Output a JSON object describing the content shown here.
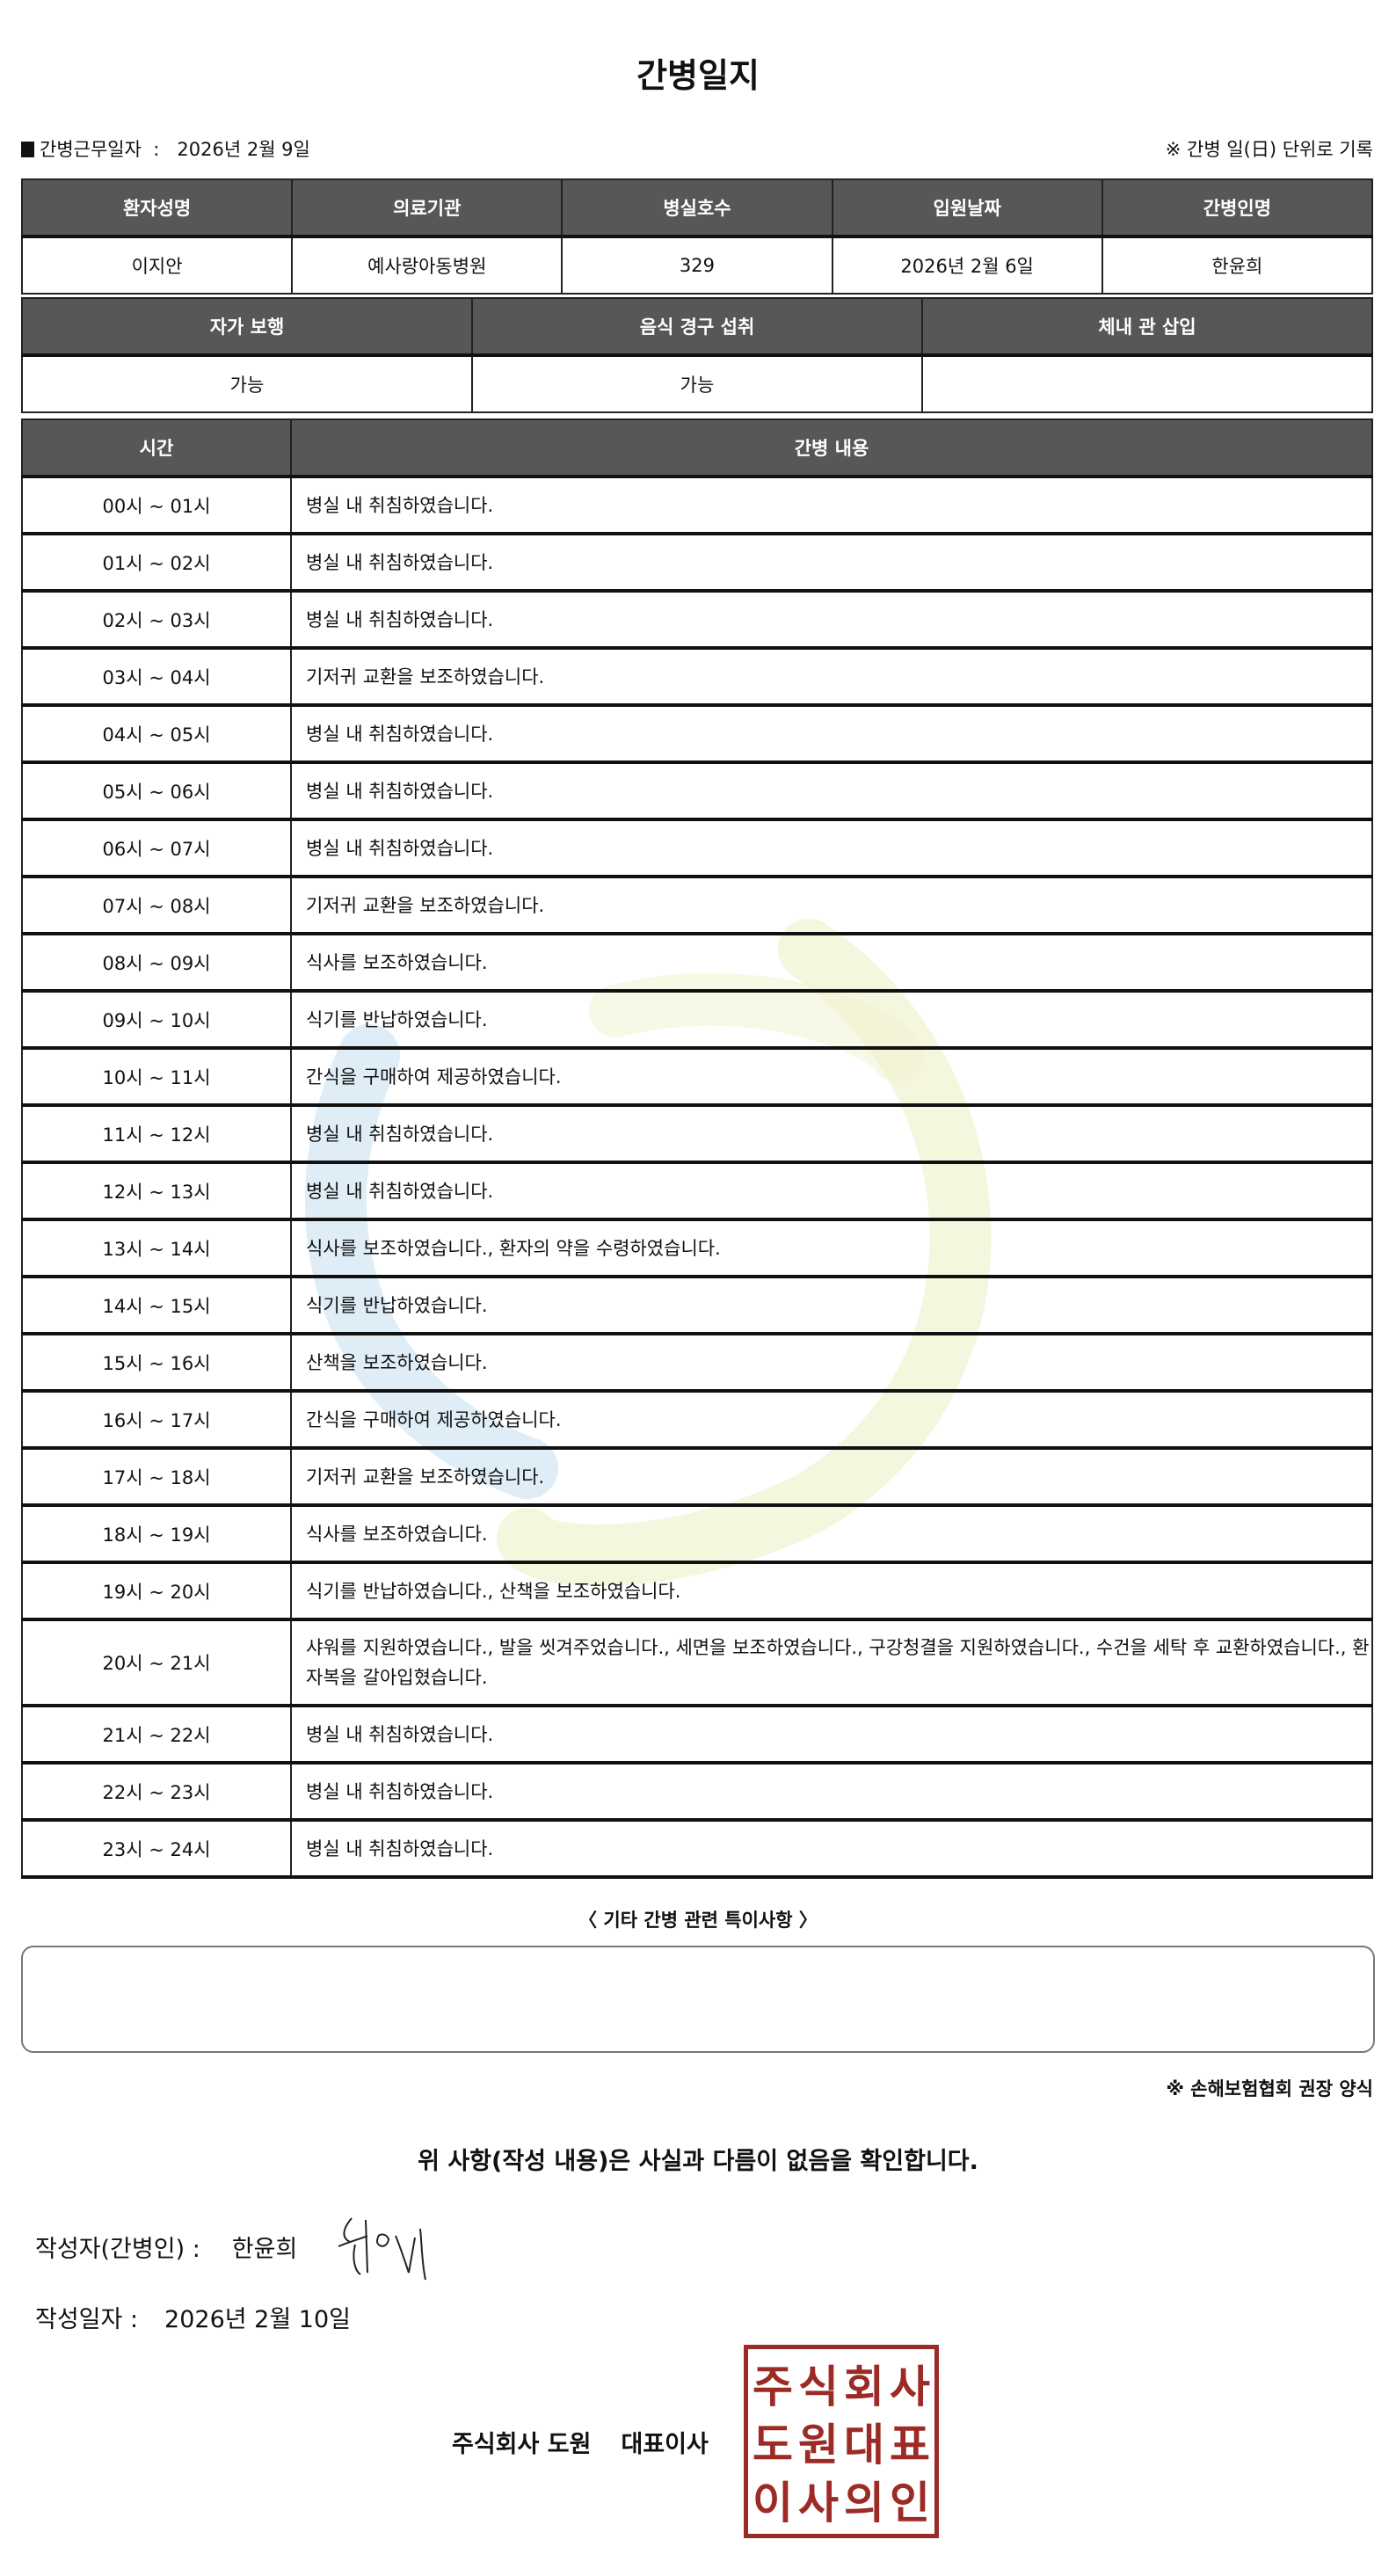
{
  "title": "간병일지",
  "meta": {
    "work_date_label": "간병근무일자",
    "separator": ":",
    "work_date": "2026년 2월 9일",
    "unit_note": "※ 간병 일(日) 단위로 기록"
  },
  "patient_table": {
    "headers": [
      "환자성명",
      "의료기관",
      "병실호수",
      "입원날짜",
      "간병인명"
    ],
    "values": [
      "이지안",
      "예사랑아동병원",
      "329",
      "2026년 2월 6일",
      "한윤희"
    ]
  },
  "status_table": {
    "headers": [
      "자가 보행",
      "음식 경구 섭취",
      "체내 관 삽입"
    ],
    "values": [
      "가능",
      "가능",
      ""
    ]
  },
  "log_table": {
    "headers": [
      "시간",
      "간병 내용"
    ],
    "rows": [
      {
        "time": "00시 ~ 01시",
        "content": "병실 내 취침하였습니다."
      },
      {
        "time": "01시 ~ 02시",
        "content": "병실 내 취침하였습니다."
      },
      {
        "time": "02시 ~ 03시",
        "content": "병실 내 취침하였습니다."
      },
      {
        "time": "03시 ~ 04시",
        "content": "기저귀 교환을 보조하였습니다."
      },
      {
        "time": "04시 ~ 05시",
        "content": "병실 내 취침하였습니다."
      },
      {
        "time": "05시 ~ 06시",
        "content": "병실 내 취침하였습니다."
      },
      {
        "time": "06시 ~ 07시",
        "content": "병실 내 취침하였습니다."
      },
      {
        "time": "07시 ~ 08시",
        "content": "기저귀 교환을 보조하였습니다."
      },
      {
        "time": "08시 ~ 09시",
        "content": "식사를 보조하였습니다."
      },
      {
        "time": "09시 ~ 10시",
        "content": "식기를 반납하였습니다."
      },
      {
        "time": "10시 ~ 11시",
        "content": "간식을 구매하여 제공하였습니다."
      },
      {
        "time": "11시 ~ 12시",
        "content": "병실 내 취침하였습니다."
      },
      {
        "time": "12시 ~ 13시",
        "content": "병실 내 취침하였습니다."
      },
      {
        "time": "13시 ~ 14시",
        "content": "식사를 보조하였습니다., 환자의 약을 수령하였습니다."
      },
      {
        "time": "14시 ~ 15시",
        "content": "식기를 반납하였습니다."
      },
      {
        "time": "15시 ~ 16시",
        "content": "산책을 보조하였습니다."
      },
      {
        "time": "16시 ~ 17시",
        "content": "간식을 구매하여 제공하였습니다."
      },
      {
        "time": "17시 ~ 18시",
        "content": "기저귀 교환을 보조하였습니다."
      },
      {
        "time": "18시 ~ 19시",
        "content": "식사를 보조하였습니다."
      },
      {
        "time": "19시 ~ 20시",
        "content": "식기를 반납하였습니다., 산책을 보조하였습니다."
      },
      {
        "time": "20시 ~ 21시",
        "content": "샤워를 지원하였습니다., 발을 씻겨주었습니다., 세면을 보조하였습니다., 구강청결을 지원하였습니다., 수건을 세탁 후 교환하였습니다., 환자복을 갈아입혔습니다."
      },
      {
        "time": "21시 ~ 22시",
        "content": "병실 내 취침하였습니다."
      },
      {
        "time": "22시 ~ 23시",
        "content": "병실 내 취침하였습니다."
      },
      {
        "time": "23시 ~ 24시",
        "content": "병실 내 취침하였습니다."
      }
    ]
  },
  "notes": {
    "title": "〈 기타 간병 관련 특이사항 〉",
    "value": ""
  },
  "form_note": "※ 손해보험협회 권장 양식",
  "confirm_statement": "위 사항(작성 내용)은 사실과 다름이 없음을 확인합니다.",
  "writer": {
    "label": "작성자(간병인) :",
    "name": "한윤희"
  },
  "written_date": {
    "label": "작성일자 :",
    "value": "2026년 2월 10일"
  },
  "company": {
    "name": "주식회사 도원",
    "title": "대표이사"
  },
  "stamp": {
    "text": "주식회사도원대표이사의인",
    "color": "#9c2a25"
  },
  "colors": {
    "header_bg": "#575757",
    "watermark_blue": "#d6e8f4",
    "watermark_yellow": "#f1f4d4"
  }
}
